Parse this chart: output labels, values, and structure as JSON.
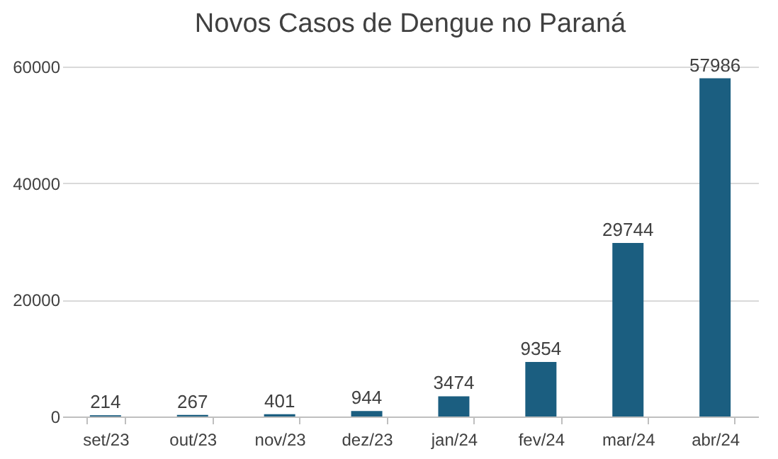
{
  "chart_data": {
    "type": "bar",
    "title": "Novos Casos de Dengue no Paraná",
    "categories": [
      "set/23",
      "out/23",
      "nov/23",
      "dez/23",
      "jan/24",
      "fev/24",
      "mar/24",
      "abr/24"
    ],
    "values": [
      214,
      267,
      401,
      944,
      3474,
      9354,
      29744,
      57986
    ],
    "color": "#1b5e80",
    "ylim": [
      0,
      60000
    ],
    "yticks": [
      0,
      20000,
      40000,
      60000
    ],
    "grid": "y",
    "data_labels": true
  }
}
